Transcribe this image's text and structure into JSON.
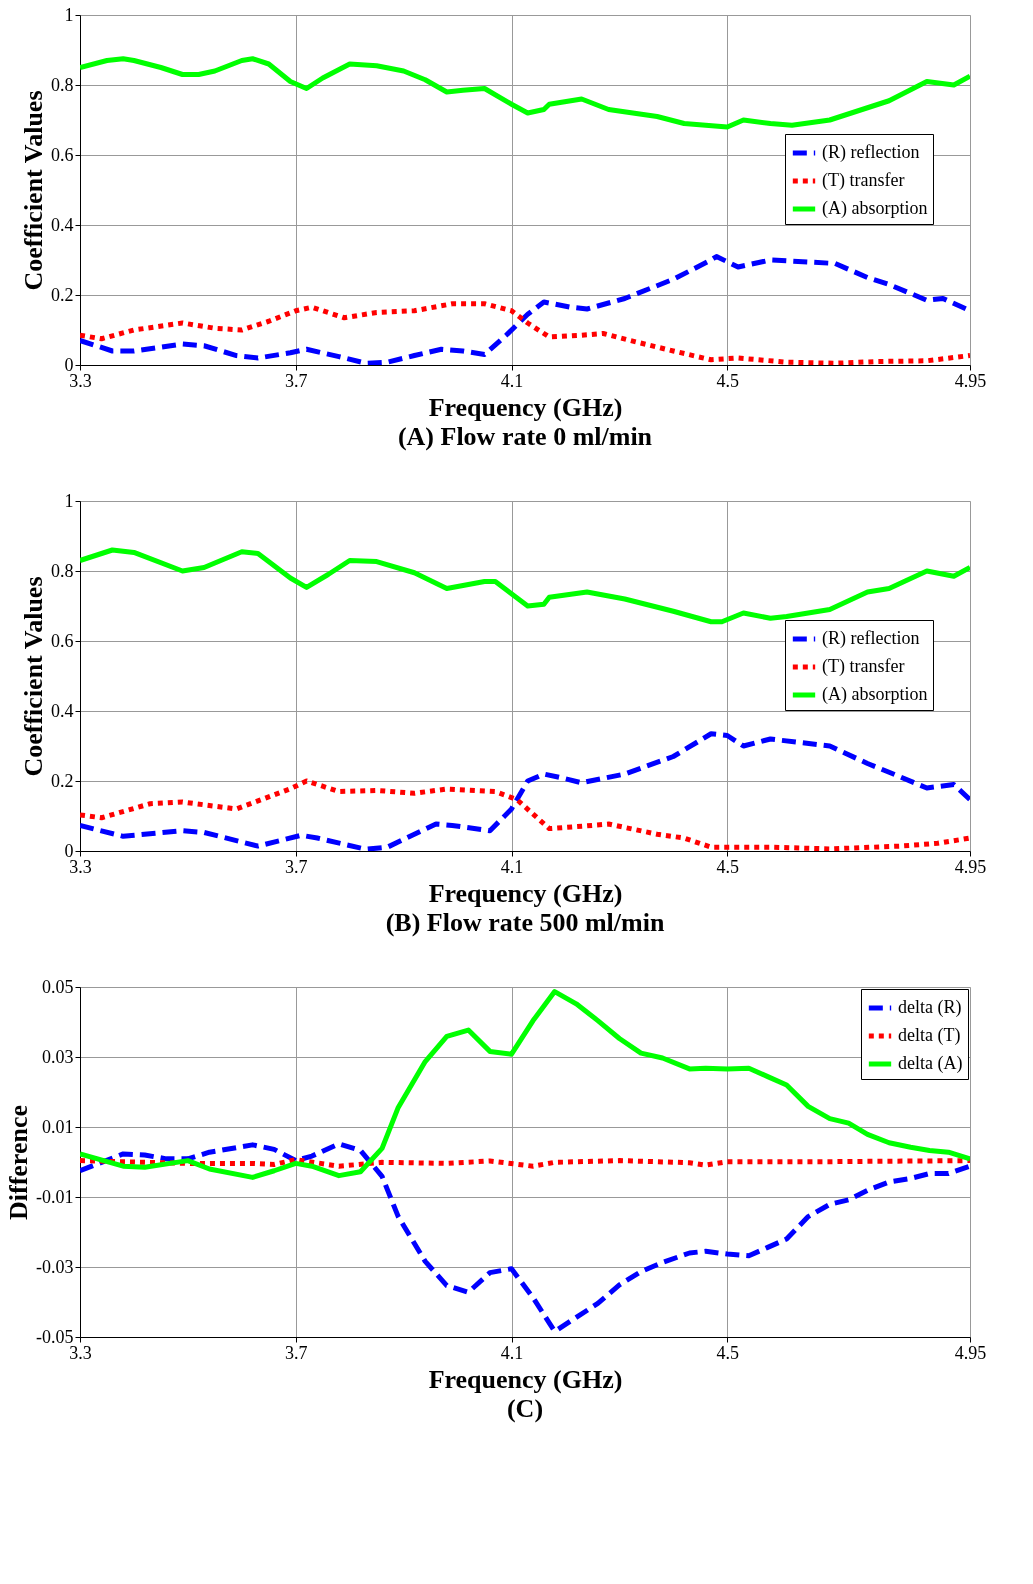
{
  "chart_data": [
    {
      "type": "line",
      "title": "(A) Flow rate 0 ml/min",
      "xlabel": "Frequency (GHz)",
      "ylabel": "Coefficient Values",
      "xlim": [
        3.3,
        4.95
      ],
      "xticks": [
        3.3,
        3.7,
        4.1,
        4.5,
        4.95
      ],
      "ylim": [
        0,
        1
      ],
      "yticks": [
        0,
        0.2,
        0.4,
        0.6,
        0.8,
        1
      ],
      "grid": true,
      "legend": "right",
      "series": [
        {
          "name": "(R) reflection",
          "color": "#0000ff",
          "line_style": "dashed",
          "x": [
            3.3,
            3.36,
            3.4,
            3.49,
            3.53,
            3.59,
            3.63,
            3.69,
            3.72,
            3.78,
            3.83,
            3.87,
            3.92,
            3.97,
            4.01,
            4.05,
            4.09,
            4.13,
            4.16,
            4.21,
            4.24,
            4.31,
            4.4,
            4.47,
            4.48,
            4.52,
            4.58,
            4.64,
            4.7,
            4.76,
            4.8,
            4.87,
            4.9,
            4.95
          ],
          "values": [
            0.07,
            0.04,
            0.04,
            0.06,
            0.055,
            0.027,
            0.02,
            0.035,
            0.045,
            0.024,
            0.005,
            0.008,
            0.027,
            0.045,
            0.04,
            0.03,
            0.085,
            0.145,
            0.18,
            0.165,
            0.16,
            0.19,
            0.245,
            0.3,
            0.31,
            0.28,
            0.3,
            0.295,
            0.29,
            0.25,
            0.23,
            0.185,
            0.19,
            0.155
          ]
        },
        {
          "name": "(T) transfer",
          "color": "#ff0000",
          "line_style": "dotted",
          "x": [
            3.3,
            3.34,
            3.4,
            3.49,
            3.55,
            3.6,
            3.65,
            3.7,
            3.73,
            3.79,
            3.85,
            3.92,
            3.99,
            4.05,
            4.1,
            4.13,
            4.17,
            4.23,
            4.27,
            4.32,
            4.4,
            4.47,
            4.52,
            4.61,
            4.7,
            4.78,
            4.87,
            4.95
          ],
          "values": [
            0.085,
            0.075,
            0.1,
            0.12,
            0.105,
            0.1,
            0.125,
            0.155,
            0.165,
            0.135,
            0.15,
            0.155,
            0.175,
            0.175,
            0.155,
            0.12,
            0.08,
            0.085,
            0.09,
            0.07,
            0.04,
            0.015,
            0.02,
            0.008,
            0.005,
            0.01,
            0.012,
            0.027
          ]
        },
        {
          "name": "(A) absorption",
          "color": "#00ff00",
          "line_style": "solid",
          "x": [
            3.3,
            3.35,
            3.38,
            3.4,
            3.45,
            3.49,
            3.52,
            3.55,
            3.6,
            3.62,
            3.65,
            3.69,
            3.72,
            3.75,
            3.8,
            3.85,
            3.9,
            3.94,
            3.98,
            4.01,
            4.05,
            4.1,
            4.13,
            4.16,
            4.17,
            4.23,
            4.28,
            4.37,
            4.42,
            4.5,
            4.53,
            4.58,
            4.62,
            4.69,
            4.76,
            4.8,
            4.87,
            4.92,
            4.95
          ],
          "values": [
            0.85,
            0.87,
            0.875,
            0.87,
            0.85,
            0.83,
            0.83,
            0.84,
            0.87,
            0.875,
            0.86,
            0.81,
            0.79,
            0.82,
            0.86,
            0.855,
            0.84,
            0.815,
            0.78,
            0.785,
            0.79,
            0.745,
            0.72,
            0.73,
            0.745,
            0.76,
            0.73,
            0.71,
            0.69,
            0.68,
            0.7,
            0.69,
            0.685,
            0.7,
            0.735,
            0.755,
            0.81,
            0.8,
            0.825
          ]
        }
      ]
    },
    {
      "type": "line",
      "title": "(B) Flow rate 500 ml/min",
      "xlabel": "Frequency (GHz)",
      "ylabel": "Coefficient Values",
      "xlim": [
        3.3,
        4.95
      ],
      "xticks": [
        3.3,
        3.7,
        4.1,
        4.5,
        4.95
      ],
      "ylim": [
        0,
        1
      ],
      "yticks": [
        0,
        0.2,
        0.4,
        0.6,
        0.8,
        1
      ],
      "grid": true,
      "legend": "right",
      "series": [
        {
          "name": "(R) reflection",
          "color": "#0000ff",
          "line_style": "dashed",
          "x": [
            3.3,
            3.38,
            3.49,
            3.53,
            3.63,
            3.71,
            3.74,
            3.83,
            3.87,
            3.96,
            3.99,
            4.06,
            4.1,
            4.13,
            4.16,
            4.19,
            4.23,
            4.31,
            4.4,
            4.47,
            4.5,
            4.53,
            4.58,
            4.69,
            4.76,
            4.8,
            4.87,
            4.92,
            4.95
          ],
          "values": [
            0.073,
            0.042,
            0.058,
            0.053,
            0.014,
            0.045,
            0.037,
            0.005,
            0.011,
            0.077,
            0.073,
            0.058,
            0.12,
            0.2,
            0.22,
            0.21,
            0.195,
            0.22,
            0.27,
            0.335,
            0.33,
            0.3,
            0.32,
            0.3,
            0.25,
            0.225,
            0.18,
            0.19,
            0.147
          ]
        },
        {
          "name": "(T) transfer",
          "color": "#ff0000",
          "line_style": "dotted",
          "x": [
            3.3,
            3.34,
            3.43,
            3.49,
            3.59,
            3.69,
            3.72,
            3.78,
            3.85,
            3.92,
            3.98,
            4.07,
            4.11,
            4.17,
            4.24,
            4.28,
            4.37,
            4.42,
            4.47,
            4.58,
            4.69,
            4.82,
            4.89,
            4.95
          ],
          "values": [
            0.103,
            0.095,
            0.135,
            0.14,
            0.12,
            0.178,
            0.2,
            0.17,
            0.173,
            0.165,
            0.177,
            0.17,
            0.147,
            0.064,
            0.072,
            0.077,
            0.048,
            0.037,
            0.011,
            0.011,
            0.006,
            0.014,
            0.022,
            0.037
          ]
        },
        {
          "name": "(A) absorption",
          "color": "#00ff00",
          "line_style": "solid",
          "x": [
            3.3,
            3.36,
            3.4,
            3.49,
            3.53,
            3.6,
            3.63,
            3.69,
            3.72,
            3.76,
            3.8,
            3.85,
            3.92,
            3.98,
            4.05,
            4.07,
            4.13,
            4.16,
            4.17,
            4.24,
            4.31,
            4.4,
            4.47,
            4.49,
            4.53,
            4.58,
            4.61,
            4.69,
            4.76,
            4.8,
            4.87,
            4.92,
            4.95
          ],
          "values": [
            0.83,
            0.86,
            0.853,
            0.8,
            0.81,
            0.855,
            0.85,
            0.78,
            0.753,
            0.79,
            0.83,
            0.827,
            0.795,
            0.75,
            0.77,
            0.77,
            0.7,
            0.705,
            0.725,
            0.74,
            0.72,
            0.685,
            0.655,
            0.655,
            0.68,
            0.665,
            0.67,
            0.69,
            0.74,
            0.75,
            0.8,
            0.785,
            0.81
          ]
        }
      ]
    },
    {
      "type": "line",
      "title": "(C)",
      "xlabel": "Frequency (GHz)",
      "ylabel": "Difference",
      "xlim": [
        3.3,
        4.95
      ],
      "xticks": [
        3.3,
        3.7,
        4.1,
        4.5,
        4.95
      ],
      "ylim": [
        -0.05,
        0.05
      ],
      "yticks": [
        -0.05,
        -0.03,
        -0.01,
        0.01,
        0.03,
        0.05
      ],
      "grid": true,
      "legend": "top right",
      "series": [
        {
          "name": "delta (R)",
          "color": "#0000ff",
          "line_style": "dashed",
          "x": [
            3.3,
            3.38,
            3.42,
            3.46,
            3.5,
            3.54,
            3.62,
            3.66,
            3.7,
            3.73,
            3.78,
            3.82,
            3.86,
            3.89,
            3.94,
            3.98,
            4.02,
            4.06,
            4.1,
            4.14,
            4.18,
            4.22,
            4.26,
            4.3,
            4.34,
            4.38,
            4.43,
            4.46,
            4.5,
            4.54,
            4.575,
            4.61,
            4.65,
            4.69,
            4.725,
            4.76,
            4.8,
            4.84,
            4.875,
            4.91,
            4.95
          ],
          "values": [
            -0.0025,
            0.0023,
            0.002,
            0.0009,
            0.0009,
            0.0028,
            0.0049,
            0.0036,
            0.0004,
            0.0017,
            0.0052,
            0.0033,
            -0.0041,
            -0.0156,
            -0.0284,
            -0.0353,
            -0.0372,
            -0.0316,
            -0.0305,
            -0.0388,
            -0.0484,
            -0.0444,
            -0.0404,
            -0.0351,
            -0.0313,
            -0.0287,
            -0.026,
            -0.0255,
            -0.0263,
            -0.0268,
            -0.0244,
            -0.022,
            -0.0156,
            -0.0121,
            -0.0108,
            -0.0081,
            -0.0057,
            -0.0047,
            -0.0033,
            -0.0033,
            -0.0012
          ]
        },
        {
          "name": "delta (T)",
          "color": "#ff0000",
          "line_style": "dotted",
          "x": [
            3.3,
            3.5,
            3.62,
            3.66,
            3.7,
            3.78,
            3.86,
            3.98,
            4.06,
            4.14,
            4.18,
            4.3,
            4.43,
            4.46,
            4.5,
            4.69,
            4.95
          ],
          "values": [
            0.0004,
            -0.0004,
            -0.0004,
            -0.0007,
            0.0007,
            -0.0012,
            -0.0001,
            -0.0004,
            0.0003,
            -0.0012,
            -0.0001,
            0.0004,
            -0.0002,
            -0.0009,
            0.0001,
            0.0001,
            0.0004
          ]
        },
        {
          "name": "delta (A)",
          "color": "#00ff00",
          "line_style": "solid",
          "x": [
            3.3,
            3.38,
            3.42,
            3.5,
            3.54,
            3.62,
            3.66,
            3.7,
            3.73,
            3.78,
            3.82,
            3.86,
            3.89,
            3.94,
            3.98,
            4.02,
            4.06,
            4.1,
            4.14,
            4.18,
            4.22,
            4.26,
            4.3,
            4.34,
            4.38,
            4.43,
            4.46,
            4.5,
            4.54,
            4.575,
            4.61,
            4.65,
            4.69,
            4.725,
            4.76,
            4.8,
            4.84,
            4.875,
            4.91,
            4.95
          ],
          "values": [
            0.0023,
            -0.0012,
            -0.0015,
            0.0004,
            -0.002,
            -0.0044,
            -0.0025,
            -0.0004,
            -0.0012,
            -0.0039,
            -0.0028,
            0.0039,
            0.0156,
            0.0287,
            0.0359,
            0.0377,
            0.0316,
            0.0308,
            0.0404,
            0.0487,
            0.0452,
            0.0404,
            0.0353,
            0.0311,
            0.0297,
            0.0266,
            0.0268,
            0.0266,
            0.0268,
            0.0244,
            0.022,
            0.0159,
            0.0124,
            0.0111,
            0.0079,
            0.0055,
            0.0042,
            0.0033,
            0.0028,
            0.0009
          ]
        }
      ]
    }
  ]
}
